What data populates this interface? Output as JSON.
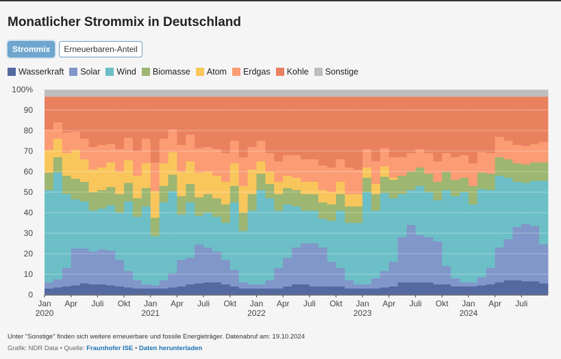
{
  "header": {
    "title": "Monatlicher Strommix in Deutschland",
    "buttons": [
      "Strommix",
      "Erneuerbaren-Anteil"
    ]
  },
  "chart_data": {
    "type": "stacked-step-area",
    "categories": [
      "Jan",
      null,
      null,
      "Apr",
      null,
      null,
      "Juli",
      null,
      null,
      "Okt",
      null,
      null,
      "Jan",
      null,
      null,
      "Apr",
      null,
      null,
      "Juli",
      null,
      null,
      "Okt",
      null,
      null,
      "Jan",
      null,
      null,
      "Apr",
      null,
      null,
      "Juli",
      null,
      null,
      "Okt",
      null,
      null,
      "Jan",
      null,
      null,
      "Apr",
      null,
      null,
      "Juli",
      null,
      null,
      "Okt",
      null,
      null,
      "Jan",
      null,
      null,
      "Apr",
      null,
      null,
      "Juli",
      null,
      null
    ],
    "years": [
      "2020",
      "2021",
      "2022",
      "2023",
      "2024"
    ],
    "ylim": [
      0,
      100
    ],
    "yticks": [
      0,
      10,
      20,
      30,
      40,
      50,
      60,
      70,
      80,
      90,
      {
        "value": 100,
        "label": "100%"
      }
    ],
    "grid": true,
    "series": [
      {
        "name": "Wasserkraft",
        "color": "#54699f",
        "values": [
          3,
          3.5,
          4,
          4.5,
          5.5,
          5,
          5,
          4.5,
          4,
          3.5,
          3,
          3,
          3,
          3,
          3.5,
          4,
          5,
          5.5,
          6,
          6,
          5,
          4,
          3,
          3,
          3,
          3,
          3,
          4,
          5,
          5,
          4,
          4,
          4,
          4,
          3,
          3,
          3,
          3,
          3.5,
          4,
          6,
          6,
          6,
          6,
          5,
          5,
          4,
          4,
          4,
          4.5,
          5,
          6,
          7,
          7,
          6.5,
          6.5,
          5.5
        ]
      },
      {
        "name": "Solar",
        "color": "#8196c9",
        "values": [
          3,
          4,
          9,
          18,
          17,
          16,
          17,
          17,
          13,
          8,
          4,
          2,
          1.5,
          4,
          7,
          13,
          13,
          19,
          17,
          15,
          12,
          8,
          3,
          2,
          2,
          4,
          10,
          14,
          18,
          20,
          21,
          19,
          12,
          9,
          4,
          2,
          2,
          5,
          8,
          12,
          22,
          28,
          23,
          22,
          21,
          9,
          4,
          2,
          2,
          4,
          8,
          17,
          20,
          26,
          28,
          27,
          19
        ]
      },
      {
        "name": "Wind",
        "color": "#6cbfc6",
        "values": [
          45,
          52,
          36,
          24,
          23,
          20,
          20,
          22,
          23,
          34,
          31,
          38,
          24,
          38,
          40,
          22,
          27,
          14,
          17,
          17,
          18,
          33,
          25,
          36,
          46,
          40,
          28,
          26,
          20,
          16,
          16,
          14,
          20,
          28,
          28,
          30,
          45,
          33,
          38,
          31,
          21,
          17,
          24,
          22,
          20,
          37,
          40,
          44,
          38,
          43,
          38,
          35,
          30,
          22,
          20,
          22,
          31
        ]
      },
      {
        "name": "Biomasse",
        "color": "#9db671",
        "values": [
          8.5,
          7.5,
          9,
          10,
          9.5,
          9,
          9,
          9,
          9,
          9,
          9,
          9,
          9,
          8,
          8,
          9,
          9,
          9,
          9,
          9,
          9,
          8,
          9,
          8,
          8,
          7,
          8,
          8,
          8,
          8,
          8,
          8,
          8,
          8,
          8,
          8,
          7,
          8,
          8,
          9,
          9,
          9,
          9,
          9,
          9,
          9,
          8,
          7,
          9,
          8,
          8,
          9,
          9,
          9,
          9,
          9,
          9
        ]
      },
      {
        "name": "Atom",
        "color": "#f9c65c",
        "values": [
          11,
          9,
          11,
          14,
          11,
          11,
          11,
          12,
          11,
          11,
          11,
          12,
          13,
          11,
          11,
          12,
          11,
          12,
          11,
          11,
          11,
          11,
          13,
          12,
          6,
          6,
          6,
          6,
          6,
          6,
          6,
          6,
          6,
          6,
          6,
          6,
          5,
          5,
          5,
          1,
          0,
          0,
          0,
          0,
          0,
          0,
          0,
          0,
          0,
          0,
          0,
          0,
          0,
          0,
          0,
          0,
          0
        ]
      },
      {
        "name": "Erdgas",
        "color": "#fb9c74",
        "values": [
          10,
          8,
          10,
          9,
          10,
          11,
          11,
          9,
          11,
          11,
          12,
          12,
          14,
          12,
          11,
          13,
          13,
          12,
          12,
          13,
          14,
          11,
          14,
          11,
          10,
          9,
          10,
          10,
          11,
          11,
          11,
          12,
          12,
          11,
          13,
          12,
          9,
          11,
          9,
          10,
          9,
          9,
          9,
          10,
          10,
          9,
          11,
          11,
          11,
          10,
          10,
          10,
          9,
          9,
          9,
          9,
          10
        ]
      },
      {
        "name": "Kohle",
        "color": "#e9815f",
        "values": [
          16,
          12.5,
          17.5,
          17,
          20.5,
          24.5,
          23.5,
          23,
          25.5,
          20,
          26.5,
          20.5,
          32,
          20.5,
          16,
          23.5,
          18.5,
          25,
          24.5,
          25.5,
          27.5,
          21.5,
          29.5,
          24.5,
          21.5,
          27.5,
          31.5,
          28.5,
          28.5,
          30.5,
          30.5,
          33.5,
          34.5,
          30.5,
          34.5,
          35.5,
          25.5,
          31.5,
          25,
          29.5,
          29.5,
          27.5,
          25.5,
          27.5,
          31.5,
          27.5,
          29.5,
          28.5,
          32.5,
          27,
          27.5,
          19.5,
          21.5,
          23.5,
          24,
          23,
          22
        ]
      },
      {
        "name": "Sonstige",
        "color": "#bebebe",
        "values": [
          3.5,
          3.5,
          3.5,
          3.5,
          3.5,
          3.5,
          3.5,
          3.5,
          3.5,
          3.5,
          3.5,
          3.5,
          3.5,
          3.5,
          3.5,
          3.5,
          3.5,
          3.5,
          3.5,
          3.5,
          3.5,
          3.5,
          3.5,
          3.5,
          3.5,
          3.5,
          3.5,
          3.5,
          3.5,
          3.5,
          3.5,
          3.5,
          3.5,
          3.5,
          3.5,
          3.5,
          3.5,
          3.5,
          3.5,
          3.5,
          3.5,
          3.5,
          3.5,
          3.5,
          3.5,
          3.5,
          3.5,
          3.5,
          3.5,
          3.5,
          3.5,
          3.5,
          3.5,
          3.5,
          3.5,
          3.5,
          3.5
        ]
      }
    ]
  },
  "footer": {
    "note": "Unter \"Sonstige\" finden sich weitere erneuerbare und fossile Energieträger. Datenabruf am: 19.10.2024",
    "credit": "Grafik: NDR Data",
    "separator": "•",
    "source": "Quelle:",
    "links": [
      "Fraunhofer ISE",
      "Daten herunterladen"
    ]
  }
}
